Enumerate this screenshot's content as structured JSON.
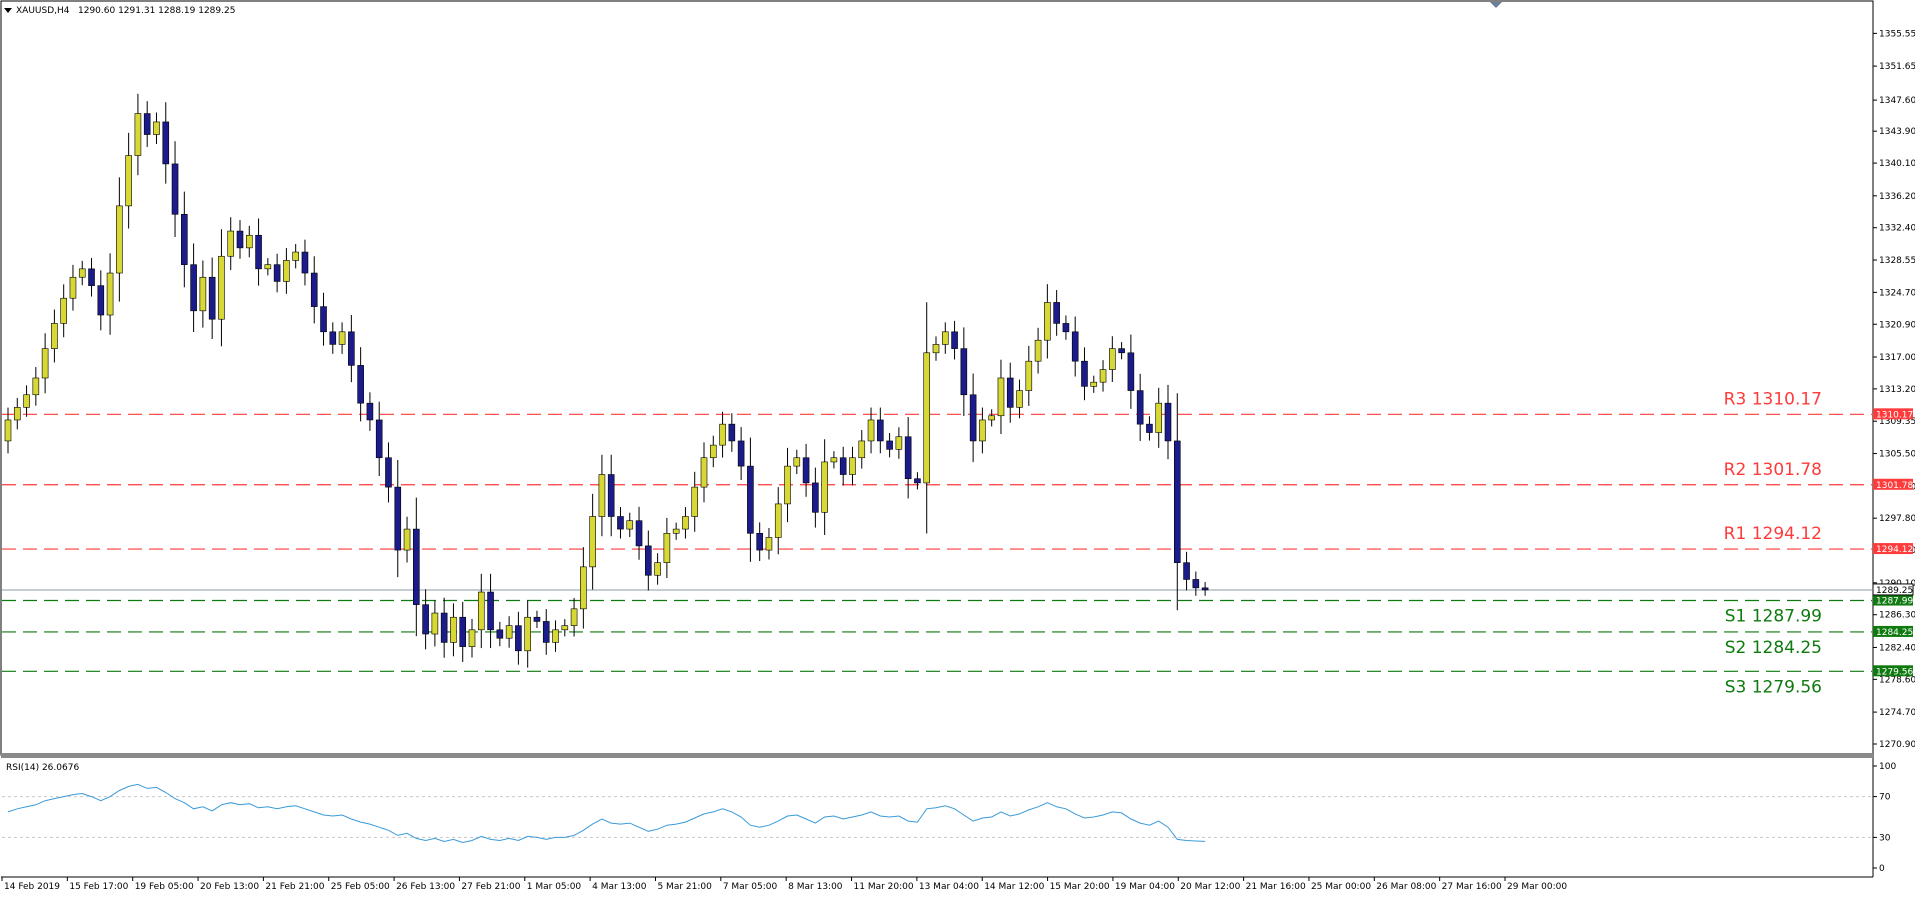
{
  "header": {
    "symbol": "XAUUSD,H4",
    "ohlc": "1290.60 1291.31 1288.19 1289.25"
  },
  "rsi_header": "RSI(14) 26.0676",
  "colors": {
    "bull": "#d7d735",
    "bear": "#1b1b8c",
    "resistance": "#ff3b3b",
    "support": "#0f7a0f",
    "rsi_line": "#3a9ad9",
    "grid_dash": "#c8c8c8"
  },
  "chart_data": [
    {
      "type": "candlestick",
      "symbol": "XAUUSD",
      "timeframe": "H4",
      "ylim": [
        1270.9,
        1357.5
      ],
      "y_ticks": [
        "1355.55",
        "1351.65",
        "1347.60",
        "1343.90",
        "1340.10",
        "1336.20",
        "1332.40",
        "1328.55",
        "1324.70",
        "1320.90",
        "1317.00",
        "1313.20",
        "1309.35",
        "1305.50",
        "1301.60",
        "1297.80",
        "1294.00",
        "1290.10",
        "1286.30",
        "1282.40",
        "1278.60",
        "1274.70",
        "1270.90"
      ],
      "x_labels": [
        "14 Feb 2019",
        "15 Feb 17:00",
        "19 Feb 05:00",
        "20 Feb 13:00",
        "21 Feb 21:00",
        "25 Feb 05:00",
        "26 Feb 13:00",
        "27 Feb 21:00",
        "1 Mar 05:00",
        "4 Mar 13:00",
        "5 Mar 21:00",
        "7 Mar 05:00",
        "8 Mar 13:00",
        "11 Mar 20:00",
        "13 Mar 04:00",
        "14 Mar 12:00",
        "15 Mar 20:00",
        "19 Mar 04:00",
        "20 Mar 12:00",
        "21 Mar 16:00",
        "25 Mar 00:00",
        "26 Mar 08:00",
        "27 Mar 16:00",
        "29 Mar 00:00"
      ],
      "closes": [
        1309.5,
        1311.0,
        1312.5,
        1314.5,
        1318.0,
        1321.0,
        1324.0,
        1326.5,
        1327.5,
        1325.5,
        1322.0,
        1327.0,
        1335.0,
        1341.0,
        1346.0,
        1343.5,
        1345.0,
        1340.0,
        1334.0,
        1328.0,
        1322.5,
        1326.5,
        1321.5,
        1329.0,
        1332.0,
        1330.0,
        1331.5,
        1327.5,
        1328.0,
        1326.0,
        1328.5,
        1329.5,
        1327.0,
        1323.0,
        1320.0,
        1318.5,
        1320.0,
        1316.0,
        1311.5,
        1309.5,
        1305.0,
        1301.5,
        1294.0,
        1296.5,
        1287.5,
        1284.0,
        1286.5,
        1283.0,
        1286.0,
        1282.5,
        1284.5,
        1289.0,
        1284.5,
        1283.5,
        1285.0,
        1282.0,
        1286.0,
        1285.5,
        1283.0,
        1284.5,
        1285.0,
        1287.0,
        1292.0,
        1298.0,
        1303.0,
        1298.0,
        1296.5,
        1297.5,
        1294.5,
        1291.0,
        1292.5,
        1296.0,
        1296.5,
        1298.0,
        1301.5,
        1305.0,
        1306.5,
        1309.0,
        1307.0,
        1304.0,
        1296.0,
        1294.0,
        1295.5,
        1299.5,
        1304.0,
        1305.0,
        1302.0,
        1298.5,
        1304.5,
        1305.0,
        1303.0,
        1305.0,
        1307.0,
        1309.5,
        1307.0,
        1306.0,
        1307.5,
        1302.5,
        1302.0,
        1317.5,
        1318.5,
        1320.0,
        1318.0,
        1312.5,
        1307.0,
        1309.5,
        1310.0,
        1314.5,
        1311.0,
        1313.0,
        1316.5,
        1319.0,
        1323.5,
        1321.0,
        1320.0,
        1316.5,
        1313.5,
        1314.0,
        1315.5,
        1318.0,
        1317.5,
        1313.0,
        1309.0,
        1308.0,
        1311.5,
        1307.0,
        1292.5,
        1290.5,
        1289.5,
        1289.25
      ],
      "levels": [
        {
          "label": "R3 1310.17",
          "price_tag": "1310.17",
          "value": 1310.17,
          "kind": "resistance"
        },
        {
          "label": "R2 1301.78",
          "price_tag": "1301.78",
          "value": 1301.78,
          "kind": "resistance"
        },
        {
          "label": "R1 1294.12",
          "price_tag": "1294.12",
          "value": 1294.12,
          "kind": "resistance"
        },
        {
          "label": "S1 1287.99",
          "price_tag": "1287.99",
          "value": 1287.99,
          "kind": "support"
        },
        {
          "label": "S2 1284.25",
          "price_tag": "1284.25",
          "value": 1284.25,
          "kind": "support"
        },
        {
          "label": "S3 1279.56",
          "price_tag": "1279.56",
          "value": 1279.56,
          "kind": "support"
        }
      ],
      "current_price_tag": "1289.25",
      "current_price": 1289.25,
      "grid": false
    },
    {
      "type": "line",
      "name": "RSI(14)",
      "ylim": [
        0,
        100
      ],
      "y_ticks": [
        "100",
        "70",
        "30",
        "0"
      ],
      "reference_levels": [
        70,
        30
      ],
      "values": [
        55,
        58,
        60,
        62,
        66,
        68,
        70,
        72,
        73,
        70,
        66,
        70,
        76,
        80,
        82,
        78,
        79,
        74,
        68,
        64,
        58,
        60,
        56,
        62,
        64,
        62,
        63,
        59,
        60,
        58,
        60,
        61,
        58,
        55,
        52,
        51,
        52,
        48,
        45,
        43,
        40,
        37,
        32,
        34,
        29,
        27,
        29,
        26,
        28,
        25,
        27,
        31,
        28,
        27,
        29,
        27,
        31,
        30,
        28,
        30,
        30,
        32,
        37,
        43,
        48,
        44,
        43,
        44,
        40,
        36,
        38,
        42,
        43,
        45,
        49,
        53,
        55,
        58,
        55,
        50,
        42,
        40,
        42,
        46,
        51,
        52,
        48,
        44,
        50,
        51,
        48,
        50,
        52,
        55,
        51,
        50,
        51,
        46,
        45,
        58,
        59,
        61,
        58,
        52,
        46,
        49,
        50,
        55,
        51,
        53,
        57,
        60,
        64,
        60,
        58,
        53,
        49,
        50,
        52,
        55,
        54,
        48,
        44,
        42,
        46,
        40,
        28,
        27,
        26.5,
        26.07
      ]
    }
  ]
}
